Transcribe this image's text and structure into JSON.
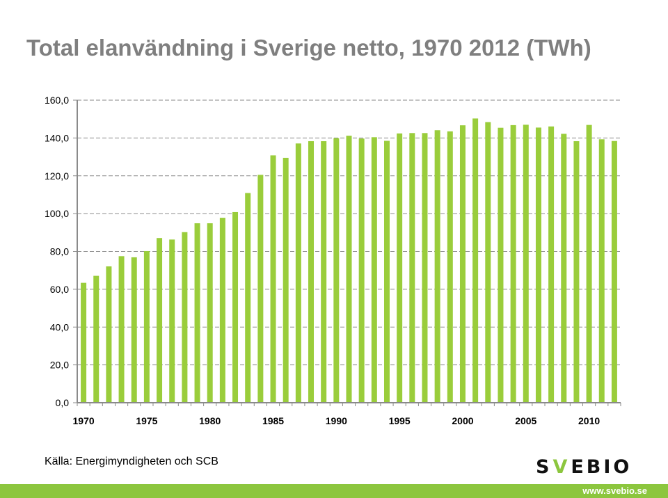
{
  "title": "Total elanvändning i Sverige netto, 1970 2012 (TWh)",
  "source": "Källa: Energimyndigheten och SCB",
  "logo": {
    "text": "SVEBIO",
    "url": "www.svebio.se"
  },
  "colors": {
    "bar": "#9ACD3B",
    "title": "#7F7F7F",
    "brand": "#8CC63E"
  },
  "chart_data": {
    "type": "bar",
    "title": "Total elanvändning i Sverige netto, 1970 2012 (TWh)",
    "xlabel": "",
    "ylabel": "",
    "ylim": [
      0,
      160
    ],
    "yticks": [
      "0,0",
      "20,0",
      "40,0",
      "60,0",
      "80,0",
      "100,0",
      "120,0",
      "140,0",
      "160,0"
    ],
    "xtick_labels": [
      "1970",
      "1975",
      "1980",
      "1985",
      "1990",
      "1995",
      "2000",
      "2005",
      "2010"
    ],
    "grid": true,
    "categories": [
      "1970",
      "1971",
      "1972",
      "1973",
      "1974",
      "1975",
      "1976",
      "1977",
      "1978",
      "1979",
      "1980",
      "1981",
      "1982",
      "1983",
      "1984",
      "1985",
      "1986",
      "1987",
      "1988",
      "1989",
      "1990",
      "1991",
      "1992",
      "1993",
      "1994",
      "1995",
      "1996",
      "1997",
      "1998",
      "1999",
      "2000",
      "2001",
      "2002",
      "2003",
      "2004",
      "2005",
      "2006",
      "2007",
      "2008",
      "2009",
      "2010",
      "2011",
      "2012"
    ],
    "values": [
      63.4,
      67.1,
      72.1,
      77.5,
      76.9,
      80.2,
      87.1,
      86.3,
      90.2,
      94.9,
      94.9,
      97.8,
      100.8,
      110.9,
      120.5,
      130.8,
      129.5,
      137.1,
      138.3,
      138.3,
      139.9,
      141.2,
      139.7,
      140.4,
      138.5,
      142.4,
      142.6,
      142.6,
      144.1,
      143.5,
      146.7,
      150.3,
      148.4,
      145.4,
      146.8,
      147.0,
      145.5,
      146.1,
      142.2,
      138.3,
      146.9,
      139.3,
      138.4
    ]
  }
}
